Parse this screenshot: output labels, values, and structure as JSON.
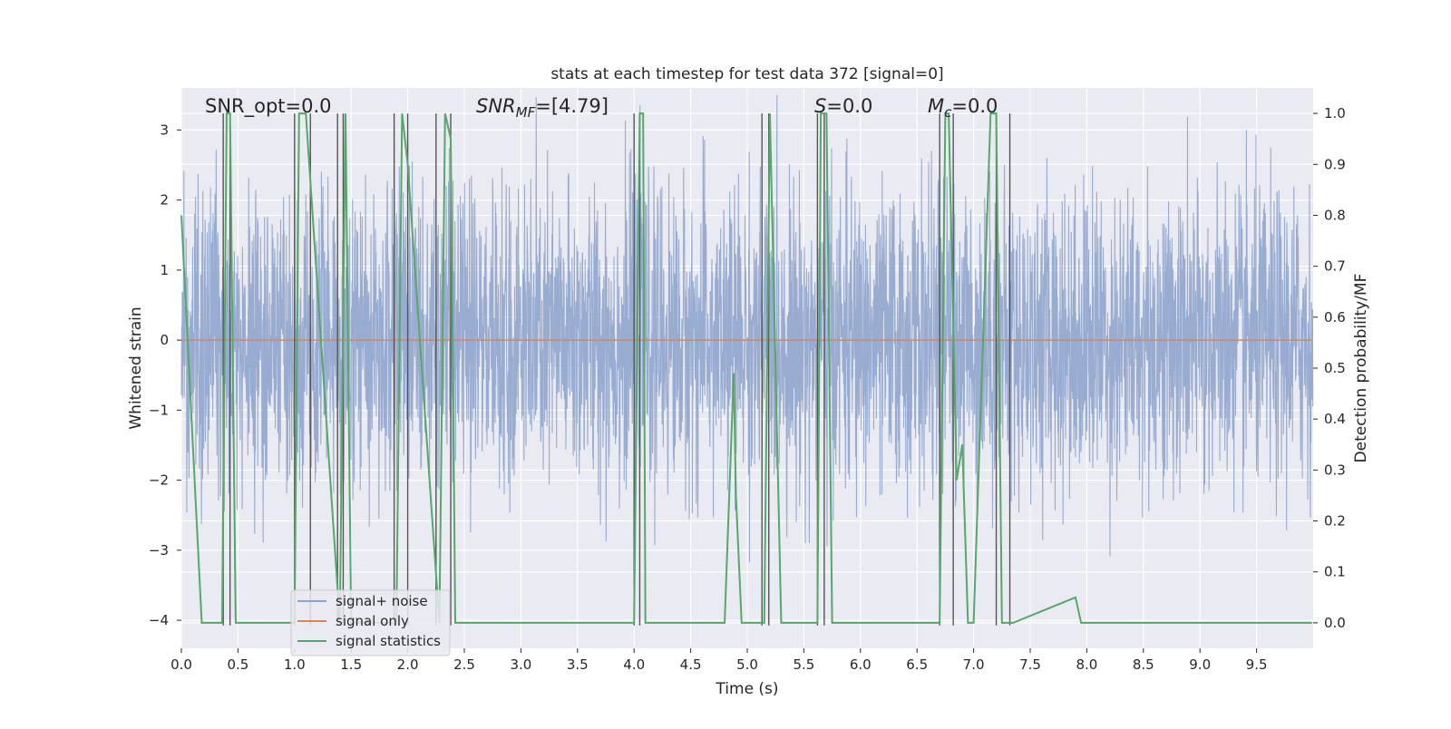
{
  "chart_data": {
    "type": "line",
    "title": "stats at each timestep for test data 372 [signal=0]",
    "xlabel": "Time (s)",
    "ylabel": "Whitened strain",
    "ylabel_right": "Detection probability/MF",
    "xlim": [
      0.0,
      10.0
    ],
    "ylim": [
      -4.4,
      3.6
    ],
    "ylim_right": [
      -0.05,
      1.05
    ],
    "xticks": [
      "0.0",
      "0.5",
      "1.0",
      "1.5",
      "2.0",
      "2.5",
      "3.0",
      "3.5",
      "4.0",
      "4.5",
      "5.0",
      "5.5",
      "6.0",
      "6.5",
      "7.0",
      "7.5",
      "8.0",
      "8.5",
      "9.0",
      "9.5"
    ],
    "yticks": [
      "3",
      "2",
      "1",
      "0",
      "−1",
      "−2",
      "−3",
      "−4"
    ],
    "yticks_right": [
      "1.0",
      "0.9",
      "0.8",
      "0.7",
      "0.6",
      "0.5",
      "0.4",
      "0.3",
      "0.2",
      "0.1",
      "0.0"
    ],
    "grid": true,
    "legend_position": "lower-left",
    "annotations": {
      "snr_opt": "SNR_opt=0.0",
      "snr_mf_base": "SNR",
      "snr_mf_sub": "MF",
      "snr_mf_val": "=[4.79]",
      "s_base": "S",
      "s_val": "=0.0",
      "mc_base": "M",
      "mc_sub": "c",
      "mc_val": "=0.0"
    },
    "series": [
      {
        "name": "signal+ noise",
        "color": "#8fa4cc",
        "note": "whitened noise, approx. Gaussian, spans about -3.7 to 3.5",
        "envelope_min": -3.7,
        "envelope_max": 3.5
      },
      {
        "name": "signal only",
        "color": "#dd8452",
        "x": [
          0.0,
          9.99
        ],
        "y": [
          0.0,
          0.0
        ]
      },
      {
        "name": "signal statistics",
        "color": "#55a868",
        "axis": "right",
        "x": [
          0.0,
          0.18,
          0.36,
          0.4,
          0.43,
          0.48,
          1.0,
          1.04,
          1.1,
          1.4,
          1.45,
          1.5,
          1.9,
          1.95,
          2.0,
          2.28,
          2.33,
          2.38,
          2.42,
          4.0,
          4.05,
          4.08,
          4.1,
          4.8,
          4.88,
          4.9,
          4.95,
          5.15,
          5.2,
          5.3,
          5.62,
          5.65,
          5.7,
          5.75,
          6.7,
          6.75,
          6.78,
          6.85,
          6.9,
          6.95,
          7.0,
          7.15,
          7.2,
          7.25,
          7.3,
          7.35,
          7.9,
          7.95,
          8.0,
          9.99
        ],
        "y": [
          0.8,
          0.0,
          0.0,
          1.0,
          1.0,
          0.0,
          0.0,
          1.0,
          1.0,
          0.0,
          1.0,
          0.0,
          0.0,
          1.0,
          0.9,
          0.0,
          1.0,
          0.95,
          0.0,
          0.0,
          1.0,
          1.0,
          0.0,
          0.0,
          0.49,
          0.25,
          0.0,
          0.0,
          1.0,
          0.0,
          0.0,
          1.0,
          1.0,
          0.0,
          0.0,
          1.0,
          1.0,
          0.28,
          0.35,
          0.0,
          0.0,
          1.0,
          1.0,
          0.0,
          0.0,
          0.0,
          0.05,
          0.0,
          0.0,
          0.0
        ]
      }
    ],
    "vertical_markers": {
      "color": "#555555",
      "x": [
        0.37,
        0.43,
        1.0,
        1.14,
        1.38,
        1.43,
        1.88,
        2.0,
        2.25,
        2.38,
        4.0,
        4.05,
        5.13,
        5.19,
        5.62,
        5.68,
        6.7,
        6.82,
        7.2,
        7.32
      ]
    }
  }
}
